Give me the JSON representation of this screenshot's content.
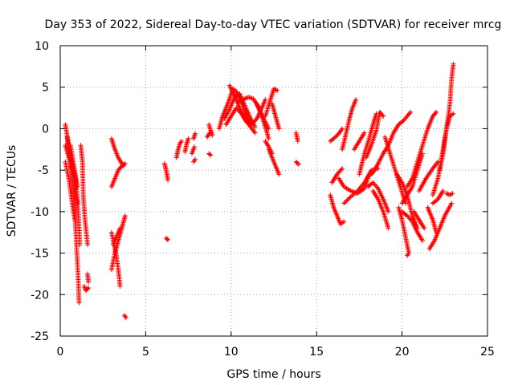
{
  "chart_data": {
    "type": "scatter",
    "title": "Day 353 of 2022, Sidereal Day-to-day VTEC variation (SDTVAR) for receiver mrcg",
    "xlabel": "GPS time / hours",
    "ylabel": "SDTVAR / TECUs",
    "xlim": [
      0,
      25
    ],
    "ylim": [
      -25,
      10
    ],
    "x_ticks": [
      0,
      5,
      10,
      15,
      20,
      25
    ],
    "y_ticks": [
      -25,
      -20,
      -15,
      -10,
      -5,
      0,
      5,
      10
    ],
    "x_tick_labels": [
      "0",
      "5",
      "10",
      "15",
      "20",
      "25"
    ],
    "y_tick_labels": [
      "-25",
      "-20",
      "-15",
      "-10",
      "-5",
      "0",
      "5",
      "10"
    ],
    "grid": true,
    "marker": "+",
    "marker_color": "#ff0000",
    "tracks": [
      [
        [
          0.3,
          0.5
        ],
        [
          0.5,
          -2
        ],
        [
          0.7,
          -4
        ],
        [
          0.9,
          -6
        ],
        [
          1.05,
          -10
        ],
        [
          1.15,
          -14
        ]
      ],
      [
        [
          0.4,
          -1
        ],
        [
          0.6,
          -4
        ],
        [
          0.8,
          -8
        ],
        [
          0.95,
          -14
        ],
        [
          1.05,
          -18
        ],
        [
          1.1,
          -21
        ]
      ],
      [
        [
          0.3,
          -2
        ],
        [
          0.5,
          -3.5
        ],
        [
          0.7,
          -5
        ],
        [
          0.9,
          -7
        ],
        [
          1.05,
          -9
        ]
      ],
      [
        [
          0.3,
          -4
        ],
        [
          0.5,
          -6
        ],
        [
          0.7,
          -9
        ],
        [
          0.85,
          -11
        ]
      ],
      [
        [
          0.6,
          -2
        ],
        [
          0.8,
          -4.5
        ],
        [
          1.0,
          -7
        ]
      ],
      [
        [
          1.2,
          -2
        ],
        [
          1.3,
          -4
        ],
        [
          1.35,
          -8
        ],
        [
          1.45,
          -11
        ],
        [
          1.6,
          -14
        ]
      ],
      [
        [
          1.4,
          -19
        ],
        [
          1.5,
          -19.5
        ],
        [
          1.65,
          -19.2
        ]
      ],
      [
        [
          1.6,
          -17.5
        ],
        [
          1.65,
          -18.5
        ]
      ],
      [
        [
          3.0,
          -1.2
        ],
        [
          3.2,
          -2.5
        ],
        [
          3.4,
          -3.5
        ],
        [
          3.6,
          -4.2
        ],
        [
          3.7,
          -4.5
        ]
      ],
      [
        [
          3.0,
          -7
        ],
        [
          3.2,
          -6
        ],
        [
          3.4,
          -5
        ],
        [
          3.6,
          -4.5
        ],
        [
          3.8,
          -4.2
        ]
      ],
      [
        [
          3.0,
          -12.5
        ],
        [
          3.15,
          -14
        ],
        [
          3.3,
          -15.5
        ],
        [
          3.4,
          -17
        ],
        [
          3.5,
          -19
        ]
      ],
      [
        [
          3.0,
          -17
        ],
        [
          3.2,
          -15
        ],
        [
          3.4,
          -13.5
        ],
        [
          3.6,
          -12
        ],
        [
          3.8,
          -10.5
        ]
      ],
      [
        [
          3.1,
          -14
        ],
        [
          3.3,
          -13
        ],
        [
          3.5,
          -12
        ]
      ],
      [
        [
          3.75,
          -22.5
        ],
        [
          3.85,
          -22.8
        ]
      ],
      [
        [
          6.1,
          -4.2
        ],
        [
          6.2,
          -5
        ],
        [
          6.3,
          -6.2
        ]
      ],
      [
        [
          6.2,
          -13.2
        ],
        [
          6.3,
          -13.4
        ]
      ],
      [
        [
          6.8,
          -3.5
        ],
        [
          6.9,
          -2.5
        ],
        [
          7.0,
          -1.8
        ],
        [
          7.1,
          -1.5
        ]
      ],
      [
        [
          7.3,
          -2.8
        ],
        [
          7.4,
          -1.8
        ],
        [
          7.5,
          -1.2
        ]
      ],
      [
        [
          7.7,
          -3
        ],
        [
          7.85,
          -2.2
        ]
      ],
      [
        [
          7.8,
          -4
        ],
        [
          7.9,
          -3.7
        ]
      ],
      [
        [
          7.8,
          -1.2
        ],
        [
          7.9,
          -0.6
        ]
      ],
      [
        [
          8.6,
          -1
        ],
        [
          8.75,
          -0.5
        ]
      ],
      [
        [
          8.7,
          -3
        ],
        [
          8.8,
          -3.2
        ]
      ],
      [
        [
          8.7,
          0.5
        ],
        [
          8.8,
          -0.2
        ],
        [
          8.9,
          -0.8
        ]
      ],
      [
        [
          9.3,
          0
        ],
        [
          9.5,
          1.5
        ],
        [
          9.8,
          3
        ],
        [
          10.1,
          4.8
        ],
        [
          10.3,
          4.5
        ],
        [
          10.6,
          3.2
        ],
        [
          10.9,
          1.6
        ],
        [
          11.1,
          0.5
        ]
      ],
      [
        [
          9.6,
          1.2
        ],
        [
          9.9,
          2.3
        ],
        [
          10.2,
          3.8
        ],
        [
          10.5,
          4.2
        ],
        [
          10.8,
          2.8
        ],
        [
          11.1,
          1.4
        ],
        [
          11.4,
          0.2
        ]
      ],
      [
        [
          9.9,
          5.2
        ],
        [
          10.2,
          4
        ],
        [
          10.5,
          2.5
        ],
        [
          10.8,
          1.2
        ],
        [
          11.1,
          0.3
        ],
        [
          11.4,
          -0.5
        ]
      ],
      [
        [
          9.7,
          0.5
        ],
        [
          10.0,
          1.5
        ],
        [
          10.3,
          2.5
        ],
        [
          10.6,
          1.8
        ],
        [
          10.9,
          0.8
        ],
        [
          11.2,
          0.5
        ],
        [
          11.5,
          1.2
        ],
        [
          11.8,
          2.5
        ],
        [
          12.0,
          3.5
        ]
      ],
      [
        [
          10.4,
          3.2
        ],
        [
          10.7,
          3.5
        ],
        [
          11.0,
          3.8
        ],
        [
          11.3,
          3.6
        ],
        [
          11.6,
          2.6
        ],
        [
          11.9,
          1.2
        ],
        [
          12.2,
          0
        ]
      ],
      [
        [
          11.5,
          3
        ],
        [
          11.8,
          1.5
        ],
        [
          12.0,
          0.2
        ],
        [
          12.2,
          -1.2
        ]
      ],
      [
        [
          12.0,
          -1.5
        ],
        [
          12.2,
          -2.2
        ],
        [
          12.4,
          -3
        ]
      ],
      [
        [
          12.2,
          -2.5
        ],
        [
          12.4,
          -3.5
        ],
        [
          12.6,
          -4.5
        ],
        [
          12.8,
          -5.5
        ]
      ],
      [
        [
          12.0,
          1.5
        ],
        [
          12.3,
          3.5
        ],
        [
          12.5,
          4.8
        ],
        [
          12.7,
          4.6
        ]
      ],
      [
        [
          12.4,
          3
        ],
        [
          12.6,
          1.5
        ],
        [
          12.8,
          0
        ]
      ],
      [
        [
          13.8,
          -0.5
        ],
        [
          13.9,
          -1.5
        ]
      ],
      [
        [
          13.8,
          -4
        ],
        [
          13.95,
          -4.3
        ]
      ],
      [
        [
          15.8,
          -1.5
        ],
        [
          16.0,
          -1.2
        ],
        [
          16.3,
          -0.6
        ],
        [
          16.5,
          0
        ]
      ],
      [
        [
          15.9,
          -6.5
        ],
        [
          16.2,
          -5.5
        ],
        [
          16.5,
          -4.8
        ]
      ],
      [
        [
          15.8,
          -8
        ],
        [
          16.0,
          -9.5
        ],
        [
          16.2,
          -10.5
        ],
        [
          16.4,
          -11.5
        ],
        [
          16.6,
          -11.2
        ]
      ],
      [
        [
          16.5,
          -2.5
        ],
        [
          16.7,
          -0.8
        ],
        [
          16.9,
          1
        ],
        [
          17.1,
          2.5
        ],
        [
          17.3,
          3.5
        ]
      ],
      [
        [
          16.3,
          -6
        ],
        [
          16.6,
          -7
        ],
        [
          17.0,
          -7.5
        ],
        [
          17.4,
          -7.8
        ],
        [
          17.8,
          -7.2
        ],
        [
          18.0,
          -6
        ]
      ],
      [
        [
          16.6,
          -9
        ],
        [
          17.0,
          -8.2
        ],
        [
          17.4,
          -7.5
        ],
        [
          17.8,
          -6.5
        ],
        [
          18.2,
          -5
        ],
        [
          18.6,
          -4.8
        ]
      ],
      [
        [
          17.2,
          -2.5
        ],
        [
          17.5,
          -1.5
        ],
        [
          17.8,
          -0.5
        ]
      ],
      [
        [
          17.9,
          -3.5
        ],
        [
          18.2,
          -2
        ],
        [
          18.5,
          -0.2
        ],
        [
          18.7,
          2
        ],
        [
          18.9,
          1.5
        ]
      ],
      [
        [
          17.5,
          -5.5
        ],
        [
          17.8,
          -3
        ],
        [
          18.1,
          -1
        ],
        [
          18.3,
          0.5
        ],
        [
          18.5,
          1.8
        ]
      ],
      [
        [
          18.0,
          -7
        ],
        [
          18.3,
          -6.5
        ],
        [
          18.6,
          -7.2
        ],
        [
          18.9,
          -8.5
        ],
        [
          19.2,
          -10
        ]
      ],
      [
        [
          18.3,
          -7.5
        ],
        [
          18.6,
          -8.5
        ],
        [
          18.9,
          -10
        ],
        [
          19.2,
          -12
        ]
      ],
      [
        [
          18.0,
          -5.8
        ],
        [
          18.3,
          -5.3
        ],
        [
          18.6,
          -4.2
        ],
        [
          18.9,
          -3
        ],
        [
          19.2,
          -2
        ],
        [
          19.5,
          -0.5
        ],
        [
          19.8,
          0.5
        ],
        [
          20.1,
          1
        ],
        [
          20.5,
          2
        ]
      ],
      [
        [
          19.0,
          -1
        ],
        [
          19.3,
          -3
        ],
        [
          19.6,
          -5
        ],
        [
          19.9,
          -7
        ],
        [
          20.2,
          -9
        ]
      ],
      [
        [
          19.7,
          -5.5
        ],
        [
          20.0,
          -6.5
        ],
        [
          20.3,
          -8
        ],
        [
          20.6,
          -10.5
        ],
        [
          20.9,
          -12
        ]
      ],
      [
        [
          20.0,
          -9
        ],
        [
          20.3,
          -8
        ],
        [
          20.6,
          -7
        ],
        [
          20.9,
          -5
        ],
        [
          21.2,
          -3
        ]
      ],
      [
        [
          20.0,
          -10
        ],
        [
          20.3,
          -10.5
        ],
        [
          20.6,
          -11.2
        ],
        [
          20.9,
          -12.5
        ],
        [
          21.2,
          -13.5
        ]
      ],
      [
        [
          20.3,
          -7
        ],
        [
          20.6,
          -6
        ],
        [
          20.9,
          -4
        ],
        [
          21.2,
          -2
        ],
        [
          21.5,
          0
        ],
        [
          21.8,
          1.5
        ],
        [
          22.0,
          2
        ]
      ],
      [
        [
          19.8,
          -9.5
        ],
        [
          20.0,
          -11
        ],
        [
          20.2,
          -13
        ],
        [
          20.4,
          -15
        ],
        [
          20.3,
          -15.3
        ]
      ],
      [
        [
          20.7,
          -10
        ],
        [
          21.0,
          -11
        ],
        [
          21.3,
          -12
        ]
      ],
      [
        [
          21.0,
          -7.5
        ],
        [
          21.4,
          -6
        ],
        [
          21.8,
          -4.8
        ],
        [
          22.1,
          -4
        ]
      ],
      [
        [
          21.5,
          -9.5
        ],
        [
          21.8,
          -11
        ],
        [
          22.0,
          -12.5
        ]
      ],
      [
        [
          21.6,
          -14.5
        ],
        [
          21.9,
          -13.5
        ],
        [
          22.2,
          -12
        ],
        [
          22.5,
          -10.5
        ],
        [
          22.9,
          -9
        ]
      ],
      [
        [
          21.8,
          -8
        ],
        [
          22.1,
          -6
        ],
        [
          22.4,
          -3
        ],
        [
          22.6,
          0
        ],
        [
          22.8,
          3
        ],
        [
          22.9,
          6
        ],
        [
          23.0,
          7.8
        ]
      ],
      [
        [
          22.2,
          -5
        ],
        [
          22.4,
          -2.5
        ],
        [
          22.6,
          0
        ],
        [
          22.8,
          1.5
        ],
        [
          23.0,
          1.8
        ]
      ],
      [
        [
          22.6,
          -7.8
        ],
        [
          22.8,
          -8
        ],
        [
          22.95,
          -7.8
        ]
      ],
      [
        [
          21.8,
          -9
        ],
        [
          22.1,
          -8.5
        ],
        [
          22.4,
          -7.5
        ]
      ]
    ]
  }
}
